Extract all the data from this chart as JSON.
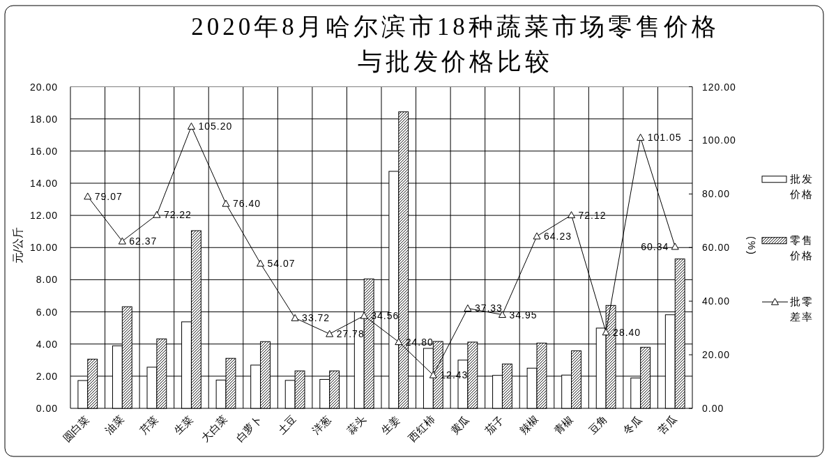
{
  "chart_data": {
    "type": "bar",
    "title": "2020年8月哈尔滨市18种蔬菜市场零售价格与批发价格比较",
    "ylabel": "元/公斤",
    "y2label": "(%)",
    "categories": [
      "圆白菜",
      "油菜",
      "芹菜",
      "生菜",
      "大白菜",
      "白萝卜",
      "土豆",
      "洋葱",
      "蒜头",
      "生姜",
      "西红柿",
      "黄瓜",
      "茄子",
      "辣椒",
      "青椒",
      "豆角",
      "冬瓜",
      "苦瓜"
    ],
    "series": [
      {
        "name": "批发价格",
        "color": "#ffffff",
        "values": [
          1.73,
          3.89,
          2.56,
          5.38,
          1.76,
          2.69,
          1.74,
          1.8,
          6.0,
          14.74,
          3.73,
          3.0,
          2.05,
          2.5,
          2.07,
          4.99,
          1.89,
          5.82
        ]
      },
      {
        "name": "零售价格",
        "color": "#000000",
        "values": [
          3.06,
          6.32,
          4.32,
          11.05,
          3.11,
          4.15,
          2.33,
          2.33,
          8.05,
          18.44,
          4.16,
          4.12,
          2.76,
          4.06,
          3.58,
          6.4,
          3.8,
          9.29
        ]
      },
      {
        "name": "批零差率",
        "type": "line",
        "axis": "y2",
        "color": "#000000",
        "marker": "triangle",
        "values": [
          79.07,
          62.37,
          72.22,
          105.2,
          76.4,
          54.07,
          33.72,
          27.78,
          34.56,
          24.8,
          12.43,
          37.33,
          34.95,
          64.23,
          72.12,
          28.4,
          101.05,
          60.34
        ],
        "value_labels": [
          "79.07",
          "62.37",
          "72.22",
          "105.20",
          "76.40",
          "54.07",
          "33.72",
          "27.78",
          "34.56",
          "24.80",
          "12.43",
          "37.33",
          "34.95",
          "64.23",
          "72.12",
          "28.40",
          "101.05",
          "60.34"
        ]
      }
    ],
    "ylim": [
      0,
      20
    ],
    "yticks": [
      {
        "value": 0,
        "label": "0.00"
      },
      {
        "value": 2,
        "label": "2.00"
      },
      {
        "value": 4,
        "label": "4.00"
      },
      {
        "value": 6,
        "label": "6.00"
      },
      {
        "value": 8,
        "label": "8.00"
      },
      {
        "value": 10,
        "label": "10.00"
      },
      {
        "value": 12,
        "label": "12.00"
      },
      {
        "value": 14,
        "label": "14.00"
      },
      {
        "value": 16,
        "label": "16.00"
      },
      {
        "value": 18,
        "label": "18.00"
      },
      {
        "value": 20,
        "label": "20.00"
      }
    ],
    "y2lim": [
      0,
      120
    ],
    "y2ticks": [
      {
        "value": 0,
        "label": "0.00"
      },
      {
        "value": 20,
        "label": "20.00"
      },
      {
        "value": 40,
        "label": "40.00"
      },
      {
        "value": 60,
        "label": "60.00"
      },
      {
        "value": 80,
        "label": "80.00"
      },
      {
        "value": 100,
        "label": "100.00"
      },
      {
        "value": 120,
        "label": "120.00"
      }
    ],
    "grid": true,
    "legend": "right"
  }
}
